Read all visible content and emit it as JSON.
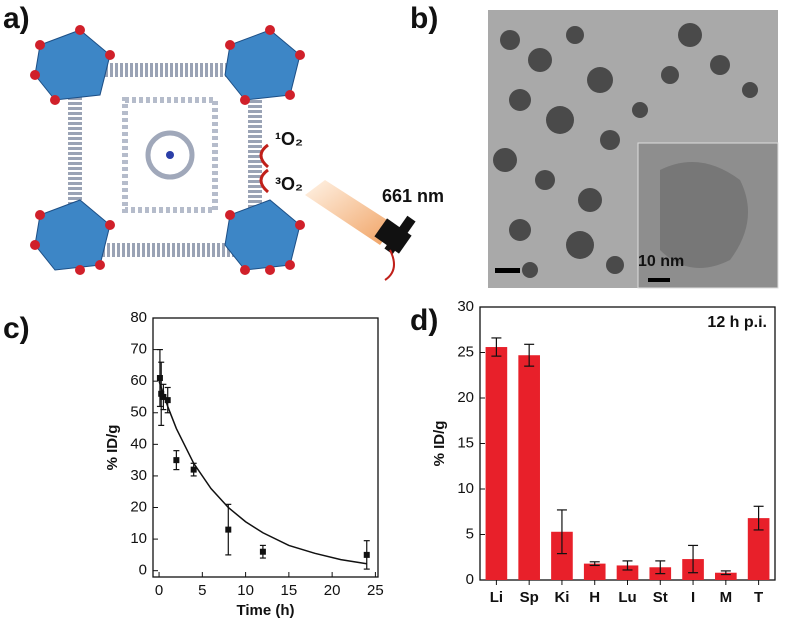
{
  "panel_labels": [
    "a)",
    "b)",
    "c)",
    "d)"
  ],
  "panel_a": {
    "species_top": "¹O₂",
    "species_bottom": "³O₂",
    "wavelength": "661 nm"
  },
  "panel_b": {
    "scale_label": "10 nm"
  },
  "chart_data": [
    {
      "type": "scatter",
      "xlabel": "Time (h)",
      "ylabel": "% ID/g",
      "xlim": [
        -0.7,
        25.3
      ],
      "xticks": [
        0,
        5,
        10,
        15,
        20,
        25
      ],
      "ylim": [
        -2,
        80
      ],
      "yticks": [
        0,
        10,
        20,
        30,
        40,
        50,
        60,
        70,
        80
      ],
      "series": [
        {
          "color": "#111111",
          "x": [
            0.1,
            0.25,
            0.5,
            1,
            2,
            4,
            8,
            12,
            24
          ],
          "values": [
            61,
            56,
            55,
            54,
            35,
            32,
            13,
            6,
            5
          ],
          "errors": [
            9,
            10,
            4,
            4,
            3,
            2,
            8,
            2,
            4.5
          ]
        },
        {
          "color": "#111111",
          "x": [
            0,
            1,
            2,
            4,
            6,
            8,
            10,
            12,
            15,
            18,
            21,
            24
          ],
          "values": [
            60,
            52,
            45,
            34,
            26,
            20,
            15.5,
            12,
            8,
            5.5,
            3.5,
            2.2
          ]
        }
      ]
    },
    {
      "type": "bar",
      "ylabel": "% ID/g",
      "annotation": "12 h p.i.",
      "color": "#e8202a",
      "categories": [
        "Li",
        "Sp",
        "Ki",
        "H",
        "Lu",
        "St",
        "I",
        "M",
        "T"
      ],
      "values": [
        25.6,
        24.7,
        5.3,
        1.8,
        1.6,
        1.4,
        2.3,
        0.8,
        6.8
      ],
      "errors": [
        1,
        1.2,
        2.4,
        0.2,
        0.5,
        0.7,
        1.5,
        0.2,
        1.3
      ],
      "ylim": [
        0,
        30
      ],
      "yticks": [
        0,
        5,
        10,
        15,
        20,
        25,
        30
      ]
    }
  ]
}
